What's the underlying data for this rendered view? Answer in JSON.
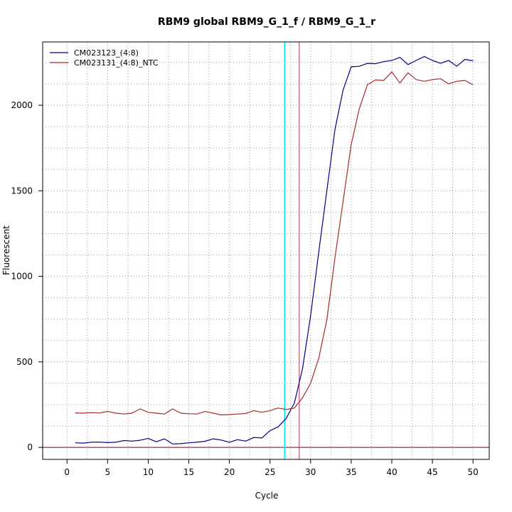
{
  "chart_data": {
    "type": "line",
    "title": "RBM9 global RBM9_G_1_f / RBM9_G_1_r",
    "xlabel": "Cycle",
    "ylabel": "Fluorescent",
    "xlim": [
      -3,
      52
    ],
    "ylim": [
      -70,
      2370
    ],
    "x_ticks": [
      0,
      5,
      10,
      15,
      20,
      25,
      30,
      35,
      40,
      45,
      50
    ],
    "y_ticks": [
      0,
      500,
      1000,
      1500,
      2000
    ],
    "grid": true,
    "legend_position": "top-left",
    "x": [
      1,
      2,
      3,
      4,
      5,
      6,
      7,
      8,
      9,
      10,
      11,
      12,
      13,
      14,
      15,
      16,
      17,
      18,
      19,
      20,
      21,
      22,
      23,
      24,
      25,
      26,
      27,
      28,
      29,
      30,
      31,
      32,
      33,
      34,
      35,
      36,
      37,
      38,
      39,
      40,
      41,
      42,
      43,
      44,
      45,
      46,
      47,
      48,
      49,
      50
    ],
    "series": [
      {
        "name": "CM023123_(4:8)",
        "color": "#00008b",
        "values": [
          27,
          25,
          30,
          31,
          28,
          30,
          40,
          37,
          42,
          52,
          33,
          50,
          20,
          22,
          27,
          30,
          36,
          50,
          43,
          30,
          45,
          37,
          58,
          55,
          98,
          120,
          170,
          260,
          460,
          770,
          1140,
          1500,
          1860,
          2090,
          2225,
          2228,
          2245,
          2243,
          2255,
          2262,
          2280,
          2238,
          2262,
          2285,
          2262,
          2245,
          2262,
          2228,
          2268,
          2260
        ]
      },
      {
        "name": "CM023131_(4:8)_NTC",
        "color": "#a52a2a",
        "values": [
          202,
          200,
          203,
          201,
          210,
          200,
          195,
          200,
          225,
          205,
          200,
          195,
          225,
          200,
          197,
          195,
          210,
          200,
          190,
          192,
          195,
          198,
          215,
          205,
          215,
          230,
          222,
          230,
          290,
          375,
          520,
          745,
          1110,
          1440,
          1770,
          1980,
          2120,
          2148,
          2145,
          2195,
          2130,
          2190,
          2150,
          2140,
          2150,
          2155,
          2125,
          2140,
          2145,
          2120
        ]
      }
    ],
    "vertical_lines": [
      {
        "x": 26.8,
        "color": "#00ffff"
      },
      {
        "x": 28.6,
        "color": "#b03060"
      }
    ],
    "horizontal_lines": [
      {
        "y": 0,
        "color": "#8b0000"
      }
    ]
  }
}
